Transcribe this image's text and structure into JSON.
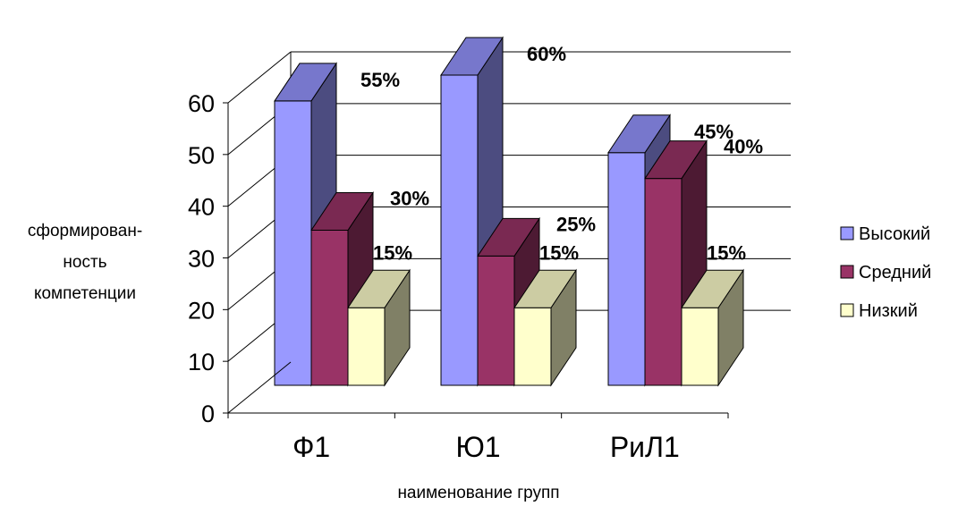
{
  "chart_data": {
    "type": "bar",
    "categories": [
      "Ф1",
      "Ю1",
      "РиЛ1"
    ],
    "series": [
      {
        "name": "Высокий",
        "values": [
          55,
          60,
          45
        ],
        "labels": [
          "55%",
          "60%",
          "45%"
        ],
        "front": "#9999ff",
        "side": "#4c4c80",
        "top": "#7777cc"
      },
      {
        "name": "Средний",
        "values": [
          30,
          25,
          40
        ],
        "labels": [
          "30%",
          "25%",
          "40%"
        ],
        "front": "#993366",
        "side": "#4d1a33",
        "top": "#7a2952"
      },
      {
        "name": "Низкий",
        "values": [
          15,
          15,
          15
        ],
        "labels": [
          "15%",
          "15%",
          "15%"
        ],
        "front": "#ffffcc",
        "side": "#808066",
        "top": "#cccca3"
      }
    ],
    "ylim": [
      0,
      60
    ],
    "yticks": [
      0,
      10,
      20,
      30,
      40,
      50,
      60
    ],
    "ylabel": [
      "сформирован-",
      "ность",
      "компетенции"
    ],
    "xlabel": "наименование групп",
    "grid": true,
    "legend": "right",
    "style": "3d"
  }
}
